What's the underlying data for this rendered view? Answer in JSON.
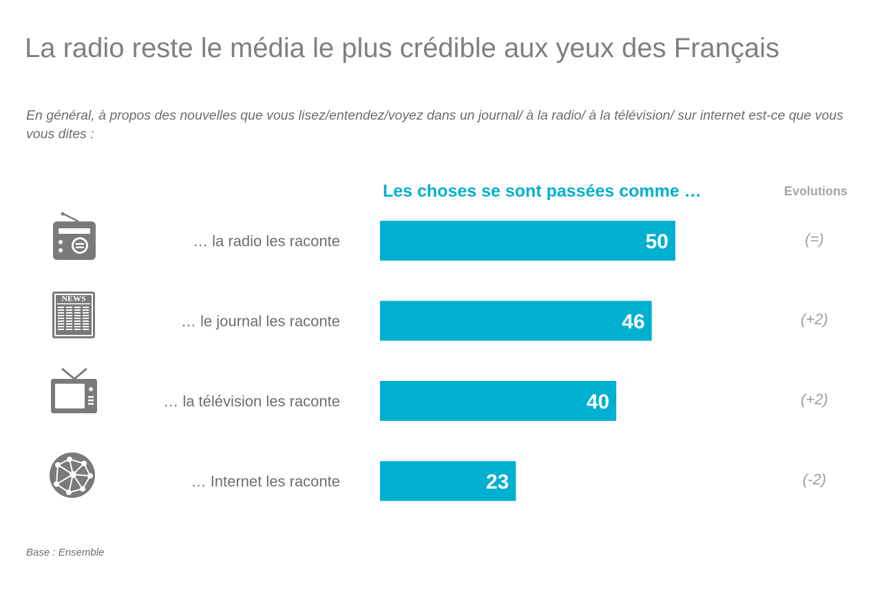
{
  "title": "La radio reste le média le plus crédible aux yeux des Français",
  "question": "En général, à propos des nouvelles que vous lisez/entendez/voyez dans un journal/ à la radio/ à la télévision/ sur internet est-ce que vous vous dites :",
  "footnote": "Base : Ensemble",
  "icons": {
    "radio": "radio-icon",
    "newspaper": "newspaper-icon",
    "tv": "tv-icon",
    "internet": "globe-network-icon",
    "newspaper_text": "NEWS"
  },
  "colors": {
    "bar": "#00b0d0",
    "icon": "#7a7a7a",
    "title": "#7f7f7f"
  },
  "chart_data": {
    "type": "bar",
    "orientation": "horizontal",
    "title": "Les choses se sont passées comme …",
    "categories": [
      "… la radio les raconte",
      "… le journal les raconte",
      "… la télévision les raconte",
      "… Internet les raconte"
    ],
    "values": [
      50,
      46,
      40,
      23
    ],
    "evolutions_header": "Evolutions",
    "evolutions": [
      "(=)",
      "(+2)",
      "(+2)",
      "(-2)"
    ],
    "xlim": [
      0,
      100
    ],
    "grid": false,
    "legend": "none"
  }
}
